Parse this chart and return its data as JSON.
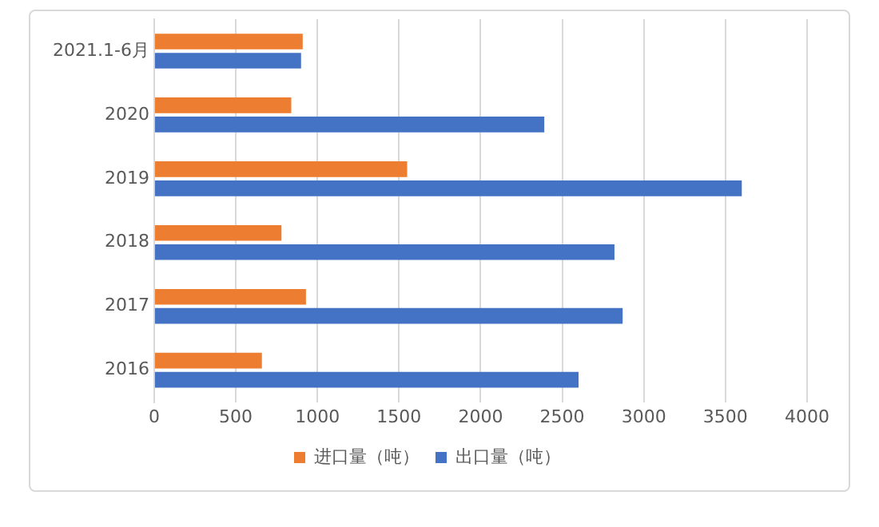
{
  "chart_data": {
    "type": "bar",
    "orientation": "horizontal",
    "categories": [
      "2021.1-6月",
      "2020",
      "2019",
      "2018",
      "2017",
      "2016"
    ],
    "series": [
      {
        "name": "进口量（吨）",
        "color": "#ed7d31",
        "values": [
          910,
          840,
          1550,
          780,
          930,
          660
        ]
      },
      {
        "name": "出口量（吨）",
        "color": "#4472c4",
        "values": [
          900,
          2390,
          3600,
          2820,
          2870,
          2600
        ]
      }
    ],
    "xlim": [
      0,
      4000
    ],
    "xticks": [
      0,
      500,
      1000,
      1500,
      2000,
      2500,
      3000,
      3500,
      4000
    ],
    "grid": "x",
    "legend": "bottom"
  }
}
